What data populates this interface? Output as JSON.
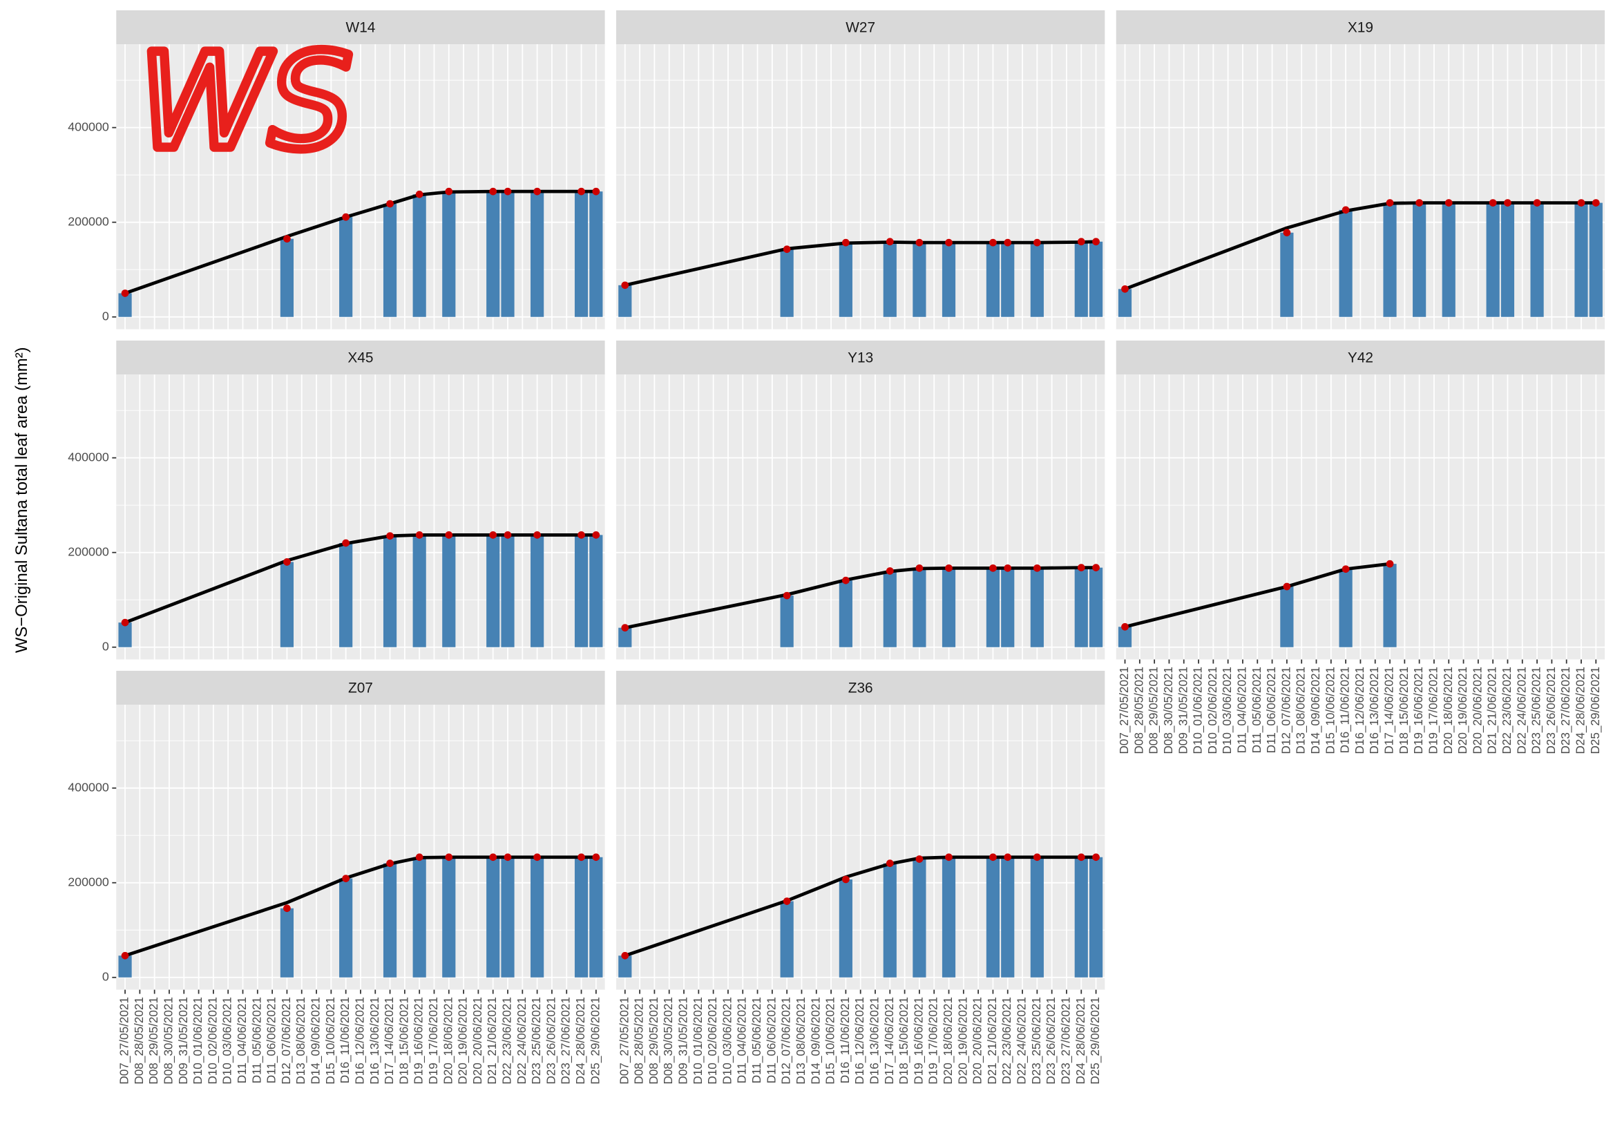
{
  "chart_data": {
    "type": "bar",
    "ylabel": "WS−Original Sultana total leaf area (mm²)",
    "annotation": "WS",
    "categories": [
      "D07_27/05/2021",
      "D08_28/05/2021",
      "D08_29/05/2021",
      "D08_30/05/2021",
      "D09_31/05/2021",
      "D10_01/06/2021",
      "D10_02/06/2021",
      "D10_03/06/2021",
      "D11_04/06/2021",
      "D11_05/06/2021",
      "D11_06/06/2021",
      "D12_07/06/2021",
      "D13_08/06/2021",
      "D14_09/06/2021",
      "D15_10/06/2021",
      "D16_11/06/2021",
      "D16_12/06/2021",
      "D16_13/06/2021",
      "D17_14/06/2021",
      "D18_15/06/2021",
      "D19_16/06/2021",
      "D19_17/06/2021",
      "D20_18/06/2021",
      "D20_19/06/2021",
      "D20_20/06/2021",
      "D21_21/06/2021",
      "D22_23/06/2021",
      "D22_24/06/2021",
      "D23_25/06/2021",
      "D23_26/06/2021",
      "D23_27/06/2021",
      "D24_28/06/2021",
      "D25_29/06/2021"
    ],
    "ylim": [
      -26000,
      576000
    ],
    "yticks": [
      0,
      200000,
      400000
    ],
    "grid": true,
    "panels": [
      {
        "title": "W14",
        "x": [
          "D07_27/05/2021",
          "D12_07/06/2021",
          "D16_11/06/2021",
          "D17_14/06/2021",
          "D19_16/06/2021",
          "D20_18/06/2021",
          "D21_21/06/2021",
          "D22_23/06/2021",
          "D23_25/06/2021",
          "D24_28/06/2021",
          "D25_29/06/2021"
        ],
        "series": [
          {
            "type": "bar",
            "color": "#4682b4",
            "point_color": "#cc0000",
            "values": [
              50000,
              165000,
              211000,
              239000,
              259000,
              265000,
              265000,
              265000,
              265000,
              265000,
              265000
            ]
          },
          {
            "type": "line",
            "color": "#000000",
            "values": [
              50000,
              170000,
              211000,
              239000,
              258000,
              264000,
              265000,
              265000,
              265000,
              265000,
              265000
            ]
          }
        ]
      },
      {
        "title": "W27",
        "x": [
          "D07_27/05/2021",
          "D12_07/06/2021",
          "D16_11/06/2021",
          "D17_14/06/2021",
          "D19_16/06/2021",
          "D20_18/06/2021",
          "D21_21/06/2021",
          "D22_23/06/2021",
          "D23_25/06/2021",
          "D24_28/06/2021",
          "D25_29/06/2021"
        ],
        "series": [
          {
            "type": "bar",
            "color": "#4682b4",
            "point_color": "#cc0000",
            "values": [
              67000,
              143000,
              157000,
              159000,
              157000,
              157000,
              157000,
              157000,
              157000,
              159000,
              159000
            ]
          },
          {
            "type": "line",
            "color": "#000000",
            "values": [
              67000,
              144000,
              156000,
              158000,
              157000,
              157000,
              157000,
              157000,
              157000,
              158000,
              159000
            ]
          }
        ]
      },
      {
        "title": "X19",
        "x": [
          "D07_27/05/2021",
          "D12_07/06/2021",
          "D16_11/06/2021",
          "D17_14/06/2021",
          "D19_16/06/2021",
          "D20_18/06/2021",
          "D21_21/06/2021",
          "D22_23/06/2021",
          "D23_25/06/2021",
          "D24_28/06/2021",
          "D25_29/06/2021"
        ],
        "series": [
          {
            "type": "bar",
            "color": "#4682b4",
            "point_color": "#cc0000",
            "values": [
              59000,
              178000,
              226000,
              241000,
              241000,
              241000,
              241000,
              241000,
              241000,
              241000,
              241000
            ]
          },
          {
            "type": "line",
            "color": "#000000",
            "values": [
              59000,
              188000,
              224000,
              240000,
              241000,
              241000,
              241000,
              241000,
              241000,
              241000,
              241000
            ]
          }
        ]
      },
      {
        "title": "X45",
        "x": [
          "D07_27/05/2021",
          "D12_07/06/2021",
          "D16_11/06/2021",
          "D17_14/06/2021",
          "D19_16/06/2021",
          "D20_18/06/2021",
          "D21_21/06/2021",
          "D22_23/06/2021",
          "D23_25/06/2021",
          "D24_28/06/2021",
          "D25_29/06/2021"
        ],
        "series": [
          {
            "type": "bar",
            "color": "#4682b4",
            "point_color": "#cc0000",
            "values": [
              52000,
              180000,
              220000,
              235000,
              237000,
              237000,
              237000,
              237000,
              237000,
              237000,
              237000
            ]
          },
          {
            "type": "line",
            "color": "#000000",
            "values": [
              52000,
              183000,
              219000,
              235000,
              237000,
              237000,
              237000,
              237000,
              237000,
              237000,
              237000
            ]
          }
        ]
      },
      {
        "title": "Y13",
        "x": [
          "D07_27/05/2021",
          "D12_07/06/2021",
          "D16_11/06/2021",
          "D17_14/06/2021",
          "D19_16/06/2021",
          "D20_18/06/2021",
          "D21_21/06/2021",
          "D22_23/06/2021",
          "D23_25/06/2021",
          "D24_28/06/2021",
          "D25_29/06/2021"
        ],
        "series": [
          {
            "type": "bar",
            "color": "#4682b4",
            "point_color": "#cc0000",
            "values": [
              41000,
              109000,
              141000,
              161000,
              167000,
              167000,
              167000,
              167000,
              167000,
              168000,
              168000
            ]
          },
          {
            "type": "line",
            "color": "#000000",
            "values": [
              41000,
              111000,
              142000,
              160000,
              166000,
              167000,
              167000,
              167000,
              167000,
              168000,
              168000
            ]
          }
        ]
      },
      {
        "title": "Y42",
        "x": [
          "D07_27/05/2021",
          "D12_07/06/2021",
          "D16_11/06/2021",
          "D17_14/06/2021"
        ],
        "series": [
          {
            "type": "bar",
            "color": "#4682b4",
            "point_color": "#cc0000",
            "values": [
              43000,
              128000,
              165000,
              176000
            ]
          },
          {
            "type": "line",
            "color": "#000000",
            "values": [
              43000,
              128000,
              165000,
              176000
            ]
          }
        ]
      },
      {
        "title": "Z07",
        "x": [
          "D07_27/05/2021",
          "D12_07/06/2021",
          "D16_11/06/2021",
          "D17_14/06/2021",
          "D19_16/06/2021",
          "D20_18/06/2021",
          "D21_21/06/2021",
          "D22_23/06/2021",
          "D23_25/06/2021",
          "D24_28/06/2021",
          "D25_29/06/2021"
        ],
        "series": [
          {
            "type": "bar",
            "color": "#4682b4",
            "point_color": "#cc0000",
            "values": [
              46000,
              146000,
              209000,
              241000,
              254000,
              254000,
              254000,
              254000,
              254000,
              254000,
              254000
            ]
          },
          {
            "type": "line",
            "color": "#000000",
            "values": [
              46000,
              158000,
              210000,
              240000,
              253000,
              254000,
              254000,
              254000,
              254000,
              254000,
              254000
            ]
          }
        ]
      },
      {
        "title": "Z36",
        "x": [
          "D07_27/05/2021",
          "D12_07/06/2021",
          "D16_11/06/2021",
          "D17_14/06/2021",
          "D19_16/06/2021",
          "D20_18/06/2021",
          "D21_21/06/2021",
          "D22_23/06/2021",
          "D23_25/06/2021",
          "D24_28/06/2021",
          "D25_29/06/2021"
        ],
        "series": [
          {
            "type": "bar",
            "color": "#4682b4",
            "point_color": "#cc0000",
            "values": [
              46000,
              161000,
              207000,
              241000,
              250000,
              254000,
              254000,
              254000,
              254000,
              254000,
              254000
            ]
          },
          {
            "type": "line",
            "color": "#000000",
            "values": [
              46000,
              162000,
              212000,
              240000,
              252000,
              254000,
              254000,
              254000,
              254000,
              254000,
              254000
            ]
          }
        ]
      }
    ]
  }
}
